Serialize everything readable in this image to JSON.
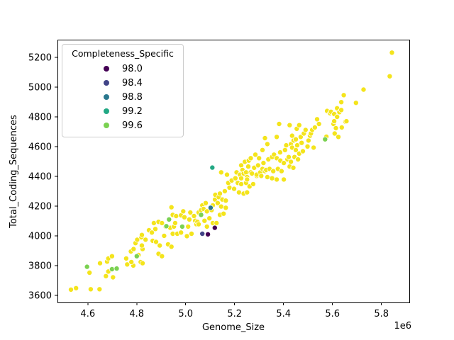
{
  "chart_data": {
    "type": "scatter",
    "title": "",
    "xlabel": "Genome_Size",
    "ylabel": "Total_Coding_Sequences",
    "x_offset_label": "1e6",
    "x_unit_scale": 1000000,
    "xlim": [
      4.476,
      5.914
    ],
    "ylim": [
      3552,
      5319
    ],
    "grid": false,
    "xticks": {
      "values": [
        4.6,
        4.8,
        5.0,
        5.2,
        5.4,
        5.6,
        5.8
      ],
      "labels": [
        "4.6",
        "4.8",
        "5.0",
        "5.2",
        "5.4",
        "5.6",
        "5.8"
      ]
    },
    "yticks": {
      "values": [
        3600,
        3800,
        4000,
        4200,
        4400,
        4600,
        4800,
        5000,
        5200
      ],
      "labels": [
        "3600",
        "3800",
        "4000",
        "4200",
        "4400",
        "4600",
        "4800",
        "5000",
        "5200"
      ]
    },
    "legend": {
      "title": "Completeness_Specific",
      "position": "upper-left",
      "entries": [
        {
          "label": "98.0",
          "color": "#440154"
        },
        {
          "label": "98.4",
          "color": "#414487"
        },
        {
          "label": "98.8",
          "color": "#2a788e"
        },
        {
          "label": "99.2",
          "color": "#22a884"
        },
        {
          "label": "99.6",
          "color": "#7ad151"
        }
      ]
    },
    "palette": {
      "98.0": "#440154",
      "98.4": "#414487",
      "98.8": "#2a788e",
      "99.2": "#22a884",
      "99.6": "#7ad151",
      "100.0": "#f4e41c"
    },
    "default_class": "100.0",
    "marker": {
      "radius": 3.6,
      "edge_color": "#ffffff",
      "edge_width": 0.8
    },
    "points": [
      [
        4.531,
        3638
      ],
      [
        4.552,
        3648
      ],
      [
        4.612,
        3641
      ],
      [
        4.648,
        3641
      ],
      [
        4.607,
        3752
      ],
      [
        4.674,
        3729
      ],
      [
        4.703,
        3721
      ],
      [
        4.684,
        3760
      ],
      [
        4.65,
        3816
      ],
      [
        4.679,
        3827
      ],
      [
        4.684,
        3848
      ],
      [
        4.699,
        3863
      ],
      [
        4.757,
        3848
      ],
      [
        4.761,
        3808
      ],
      [
        4.776,
        3895
      ],
      [
        4.786,
        3800
      ],
      [
        4.778,
        3824
      ],
      [
        4.787,
        3911
      ],
      [
        4.795,
        3951
      ],
      [
        4.802,
        3974
      ],
      [
        4.807,
        3871
      ],
      [
        4.816,
        3824
      ],
      [
        4.819,
        3990
      ],
      [
        4.819,
        3935
      ],
      [
        4.824,
        3911
      ],
      [
        4.824,
        3816
      ],
      [
        4.821,
        3935
      ],
      [
        4.821,
        4006
      ],
      [
        4.836,
        3974
      ],
      [
        4.85,
        4038
      ],
      [
        4.862,
        4022
      ],
      [
        4.865,
        3967
      ],
      [
        4.87,
        4086
      ],
      [
        4.876,
        4046
      ],
      [
        4.879,
        3959
      ],
      [
        4.889,
        3879
      ],
      [
        4.889,
        4094
      ],
      [
        4.894,
        3935
      ],
      [
        4.903,
        3863
      ],
      [
        4.903,
        4086
      ],
      [
        4.912,
        4000
      ],
      [
        4.918,
        4062
      ],
      [
        4.928,
        3943
      ],
      [
        4.937,
        4054
      ],
      [
        4.942,
        3927
      ],
      [
        4.942,
        4192
      ],
      [
        4.947,
        4141
      ],
      [
        4.947,
        4014
      ],
      [
        4.952,
        4062
      ],
      [
        4.957,
        4086
      ],
      [
        4.961,
        4133
      ],
      [
        4.966,
        4014
      ],
      [
        4.981,
        4138
      ],
      [
        4.981,
        4022
      ],
      [
        4.99,
        4165
      ],
      [
        4.995,
        4125
      ],
      [
        5.005,
        3998
      ],
      [
        5.01,
        4062
      ],
      [
        5.015,
        4110
      ],
      [
        5.019,
        4157
      ],
      [
        5.024,
        4014
      ],
      [
        5.034,
        4133
      ],
      [
        5.039,
        4101
      ],
      [
        5.044,
        4078
      ],
      [
        5.048,
        4094
      ],
      [
        5.053,
        4157
      ],
      [
        5.053,
        4078
      ],
      [
        5.063,
        4173
      ],
      [
        5.068,
        4205
      ],
      [
        5.073,
        4181
      ],
      [
        5.077,
        4101
      ],
      [
        5.082,
        4220
      ],
      [
        5.087,
        4165
      ],
      [
        5.087,
        4062
      ],
      [
        5.097,
        4118
      ],
      [
        5.106,
        4173
      ],
      [
        5.111,
        4205
      ],
      [
        5.111,
        4086
      ],
      [
        5.12,
        4244
      ],
      [
        5.121,
        4276
      ],
      [
        5.126,
        4086
      ],
      [
        5.131,
        4220
      ],
      [
        5.135,
        4260
      ],
      [
        5.14,
        4284
      ],
      [
        5.14,
        4141
      ],
      [
        5.145,
        4197
      ],
      [
        5.145,
        4427
      ],
      [
        5.15,
        4244
      ],
      [
        5.155,
        4149
      ],
      [
        5.16,
        4300
      ],
      [
        5.164,
        4237
      ],
      [
        5.164,
        4189
      ],
      [
        5.169,
        4411
      ],
      [
        5.174,
        4356
      ],
      [
        5.179,
        4324
      ],
      [
        5.188,
        4372
      ],
      [
        5.198,
        4316
      ],
      [
        5.203,
        4387
      ],
      [
        5.208,
        4427
      ],
      [
        5.213,
        4356
      ],
      [
        5.218,
        4292
      ],
      [
        5.222,
        4411
      ],
      [
        5.227,
        4348
      ],
      [
        5.227,
        4474
      ],
      [
        5.227,
        4387
      ],
      [
        5.232,
        4443
      ],
      [
        5.237,
        4419
      ],
      [
        5.237,
        4284
      ],
      [
        5.242,
        4498
      ],
      [
        5.247,
        4356
      ],
      [
        5.247,
        4427
      ],
      [
        5.251,
        4395
      ],
      [
        5.251,
        4292
      ],
      [
        5.251,
        4379
      ],
      [
        5.256,
        4466
      ],
      [
        5.258,
        4506
      ],
      [
        5.261,
        4332
      ],
      [
        5.266,
        4427
      ],
      [
        5.266,
        4522
      ],
      [
        5.271,
        4419
      ],
      [
        5.276,
        4348
      ],
      [
        5.28,
        4458
      ],
      [
        5.285,
        4546
      ],
      [
        5.29,
        4403
      ],
      [
        5.29,
        4411
      ],
      [
        5.296,
        4474
      ],
      [
        5.3,
        4522
      ],
      [
        5.305,
        4427
      ],
      [
        5.309,
        4403
      ],
      [
        5.314,
        4450
      ],
      [
        5.314,
        4577
      ],
      [
        5.318,
        4490
      ],
      [
        5.324,
        4435
      ],
      [
        5.324,
        4657
      ],
      [
        5.329,
        4443
      ],
      [
        5.334,
        4395
      ],
      [
        5.334,
        4617
      ],
      [
        5.338,
        4514
      ],
      [
        5.343,
        4450
      ],
      [
        5.353,
        4387
      ],
      [
        5.353,
        4530
      ],
      [
        5.358,
        4435
      ],
      [
        5.361,
        4546
      ],
      [
        5.372,
        4379
      ],
      [
        5.372,
        4522
      ],
      [
        5.372,
        4665
      ],
      [
        5.377,
        4450
      ],
      [
        5.382,
        4752
      ],
      [
        5.386,
        4561
      ],
      [
        5.387,
        4506
      ],
      [
        5.392,
        4435
      ],
      [
        5.401,
        4379
      ],
      [
        5.401,
        4490
      ],
      [
        5.406,
        4577
      ],
      [
        5.411,
        4609
      ],
      [
        5.416,
        4514
      ],
      [
        5.421,
        4530
      ],
      [
        5.425,
        4744
      ],
      [
        5.425,
        4466
      ],
      [
        5.43,
        4617
      ],
      [
        5.43,
        4498
      ],
      [
        5.435,
        4673
      ],
      [
        5.435,
        4593
      ],
      [
        5.44,
        4458
      ],
      [
        5.441,
        4641
      ],
      [
        5.445,
        4530
      ],
      [
        5.45,
        4649
      ],
      [
        5.45,
        4577
      ],
      [
        5.454,
        4720
      ],
      [
        5.456,
        4609
      ],
      [
        5.459,
        4514
      ],
      [
        5.464,
        4744
      ],
      [
        5.464,
        4553
      ],
      [
        5.47,
        4665
      ],
      [
        5.474,
        4625
      ],
      [
        5.479,
        4569
      ],
      [
        5.483,
        4688
      ],
      [
        5.49,
        4712
      ],
      [
        5.498,
        4601
      ],
      [
        5.502,
        4641
      ],
      [
        5.508,
        4673
      ],
      [
        5.512,
        4688
      ],
      [
        5.517,
        4712
      ],
      [
        5.523,
        4593
      ],
      [
        5.528,
        4729
      ],
      [
        5.537,
        4784
      ],
      [
        5.545,
        4752
      ],
      [
        5.575,
        4667
      ],
      [
        5.578,
        4840
      ],
      [
        5.59,
        4824
      ],
      [
        5.594,
        4834
      ],
      [
        5.604,
        4752
      ],
      [
        5.607,
        4819
      ],
      [
        5.607,
        4771
      ],
      [
        5.609,
        4688
      ],
      [
        5.614,
        4724
      ],
      [
        5.619,
        4800
      ],
      [
        5.619,
        4858
      ],
      [
        5.624,
        4665
      ],
      [
        5.628,
        4832
      ],
      [
        5.636,
        4899
      ],
      [
        5.636,
        4846
      ],
      [
        5.638,
        4729
      ],
      [
        5.646,
        4946
      ],
      [
        5.653,
        4768
      ],
      [
        5.657,
        4771
      ],
      [
        5.696,
        4894
      ],
      [
        5.727,
        4983
      ],
      [
        5.834,
        5073
      ],
      [
        5.843,
        5232
      ],
      [
        4.597,
        3792,
        "99.6"
      ],
      [
        4.699,
        3776,
        "99.6"
      ],
      [
        4.718,
        3780,
        "99.6"
      ],
      [
        4.8,
        3863,
        "99.6"
      ],
      [
        4.921,
        4065,
        "99.6"
      ],
      [
        4.932,
        4110,
        "99.6"
      ],
      [
        4.986,
        4062,
        "99.6"
      ],
      [
        5.063,
        4141,
        "99.6"
      ],
      [
        5.57,
        4649,
        "99.6"
      ],
      [
        5.109,
        4459,
        "99.2"
      ],
      [
        5.102,
        4189,
        "98.8"
      ],
      [
        5.068,
        4014,
        "98.4"
      ],
      [
        5.091,
        4010,
        "98.0"
      ],
      [
        5.119,
        4054,
        "98.0"
      ]
    ]
  }
}
